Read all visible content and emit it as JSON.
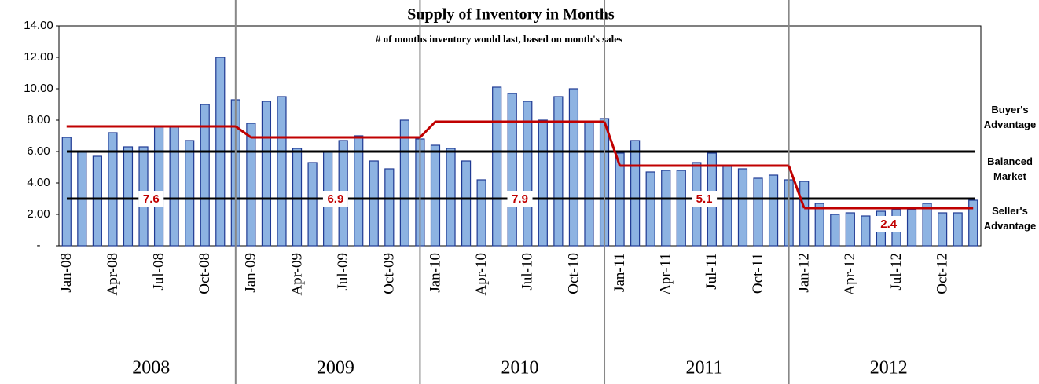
{
  "chart_data": {
    "type": "bar",
    "title": "Supply of Inventory in Months",
    "subtitle": "# of months inventory would last, based on month's sales",
    "categories": [
      "Jan-08",
      null,
      null,
      "Apr-08",
      null,
      null,
      "Jul-08",
      null,
      null,
      "Oct-08",
      null,
      null,
      "Jan-09",
      null,
      null,
      "Apr-09",
      null,
      null,
      "Jul-09",
      null,
      null,
      "Oct-09",
      null,
      null,
      "Jan-10",
      null,
      null,
      "Apr-10",
      null,
      null,
      "Jul-10",
      null,
      null,
      "Oct-10",
      null,
      null,
      "Jan-11",
      null,
      null,
      "Apr-11",
      null,
      null,
      "Jul-11",
      null,
      null,
      "Oct-11",
      null,
      null,
      "Jan-12",
      null,
      null,
      "Apr-12",
      null,
      null,
      "Jul-12",
      null,
      null,
      "Oct-12",
      null,
      null
    ],
    "values": [
      6.9,
      6.0,
      5.7,
      7.2,
      6.3,
      6.3,
      7.6,
      7.6,
      6.7,
      9.0,
      12.0,
      9.3,
      7.8,
      9.2,
      9.5,
      6.2,
      5.3,
      6.0,
      6.7,
      7.0,
      5.4,
      4.9,
      8.0,
      6.8,
      6.4,
      6.2,
      5.4,
      4.2,
      10.1,
      9.7,
      9.2,
      8.0,
      9.5,
      10.0,
      7.9,
      8.1,
      5.9,
      6.7,
      4.7,
      4.8,
      4.8,
      5.3,
      5.9,
      5.1,
      4.9,
      4.3,
      4.5,
      4.2,
      4.1,
      2.7,
      2.0,
      2.1,
      1.9,
      2.2,
      2.3,
      2.3,
      2.7,
      2.1,
      2.1,
      2.9
    ],
    "color": "#8db3e2",
    "ylim": [
      0,
      14
    ],
    "yticks": [
      {
        "value": 0,
        "label": "-"
      },
      {
        "value": 2,
        "label": "2.00"
      },
      {
        "value": 4,
        "label": "4.00"
      },
      {
        "value": 6,
        "label": "6.00"
      },
      {
        "value": 8,
        "label": "8.00"
      },
      {
        "value": 10,
        "label": "10.00"
      },
      {
        "value": 12,
        "label": "12.00"
      },
      {
        "value": 14,
        "label": "14.00"
      }
    ],
    "years": [
      "2008",
      "2009",
      "2010",
      "2011",
      "2012"
    ],
    "annual_average": {
      "color": "#c00000",
      "values": [
        7.6,
        6.9,
        7.9,
        5.1,
        2.4
      ]
    },
    "reference_lines": [
      6,
      3
    ],
    "annotations": [
      "Buyer's Advantage",
      "Balanced Market",
      "Seller's Advantage"
    ]
  }
}
